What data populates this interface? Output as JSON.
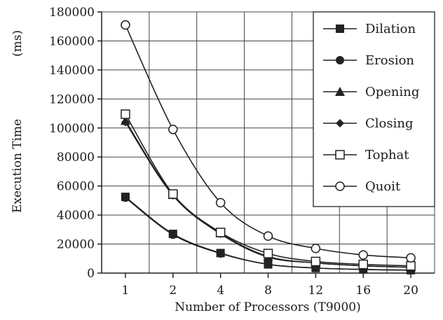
{
  "chart_data": {
    "type": "line",
    "title": "",
    "xlabel": "Number of Processors (T9000)",
    "ylabel": "Execution Time",
    "yunit": "(ms)",
    "categories": [
      "1",
      "2",
      "4",
      "8",
      "12",
      "16",
      "20"
    ],
    "ylim": [
      0,
      180000
    ],
    "yticks": [
      0,
      20000,
      40000,
      60000,
      80000,
      100000,
      120000,
      140000,
      160000,
      180000
    ],
    "grid": true,
    "legend_position": "top-right",
    "series": [
      {
        "name": "Dilation",
        "marker": "square-filled",
        "values": [
          52500,
          27000,
          13800,
          6000,
          3500,
          2500,
          2000
        ]
      },
      {
        "name": "Erosion",
        "marker": "circle-filled",
        "values": [
          52000,
          26500,
          13500,
          6000,
          3500,
          2500,
          2000
        ]
      },
      {
        "name": "Opening",
        "marker": "triangle-filled",
        "values": [
          105000,
          54000,
          27500,
          11500,
          7000,
          5000,
          4000
        ]
      },
      {
        "name": "Closing",
        "marker": "diamond-filled",
        "values": [
          104000,
          53500,
          27000,
          11000,
          7000,
          5000,
          4000
        ]
      },
      {
        "name": "Tophat",
        "marker": "square-open",
        "values": [
          109500,
          54500,
          28000,
          13500,
          8000,
          6000,
          5000
        ]
      },
      {
        "name": "Quoit",
        "marker": "circle-open",
        "values": [
          171000,
          99000,
          48500,
          25500,
          17000,
          12500,
          10500
        ]
      }
    ]
  }
}
